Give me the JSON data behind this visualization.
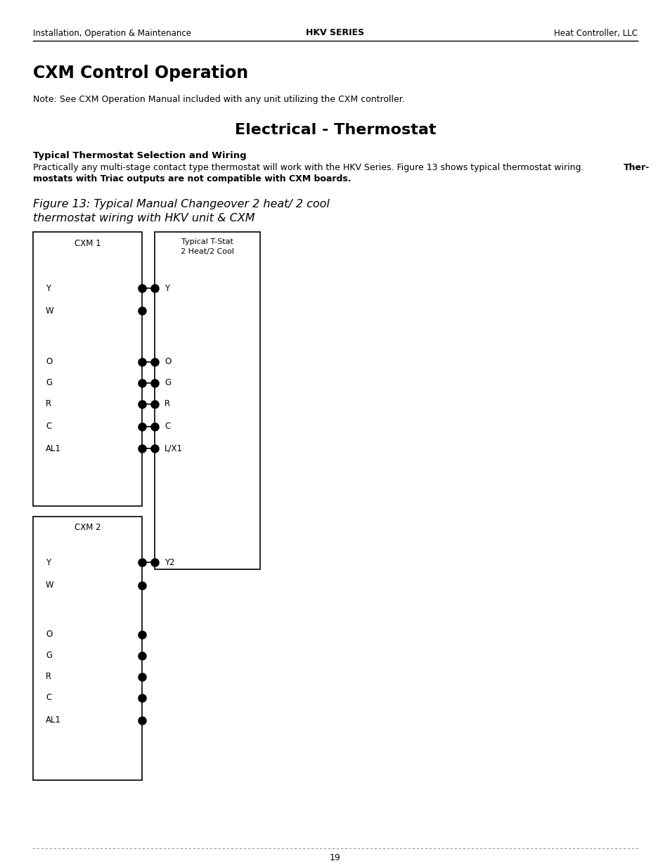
{
  "header_left": "Installation, Operation & Maintenance",
  "header_center": "HKV SERIES",
  "header_right": "Heat Controller, LLC",
  "page_number": "19",
  "section_title": "CXM Control Operation",
  "note_text": "Note: See CXM Operation Manual included with any unit utilizing the CXM controller.",
  "diagram_title": "Electrical - Thermostat",
  "subsection_title": "Typical Thermostat Selection and Wiring",
  "body_text_normal": "Practically any multi-stage contact type thermostat will work with the HKV Series. Figure 13 shows typical thermostat wiring. Ther-\nmostats with Triac outputs are not compatible with CXM boards.",
  "body_bold_start": "Ther-\nmostats with Triac outputs are not compatible with CXM boards.",
  "figure_caption_line1": "Figure 13: Typical Manual Changeover 2 heat/ 2 cool",
  "figure_caption_line2": "thermostat wiring with HKV unit & CXM",
  "cxm1_label": "CXM 1",
  "cxm2_label": "CXM 2",
  "tstat_label_line1": "Typical T-Stat",
  "tstat_label_line2": "2 Heat/2 Cool",
  "cxm1_terminals": [
    "Y",
    "W",
    "O",
    "G",
    "R",
    "C",
    "AL1"
  ],
  "cxm2_terminals": [
    "Y",
    "W",
    "O",
    "G",
    "R",
    "C",
    "AL1"
  ],
  "tstat_connected": [
    "Y",
    "O",
    "G",
    "R",
    "C",
    "L/X1"
  ],
  "tstat_y2": "Y2",
  "bg_color": "#ffffff",
  "text_color": "#000000"
}
